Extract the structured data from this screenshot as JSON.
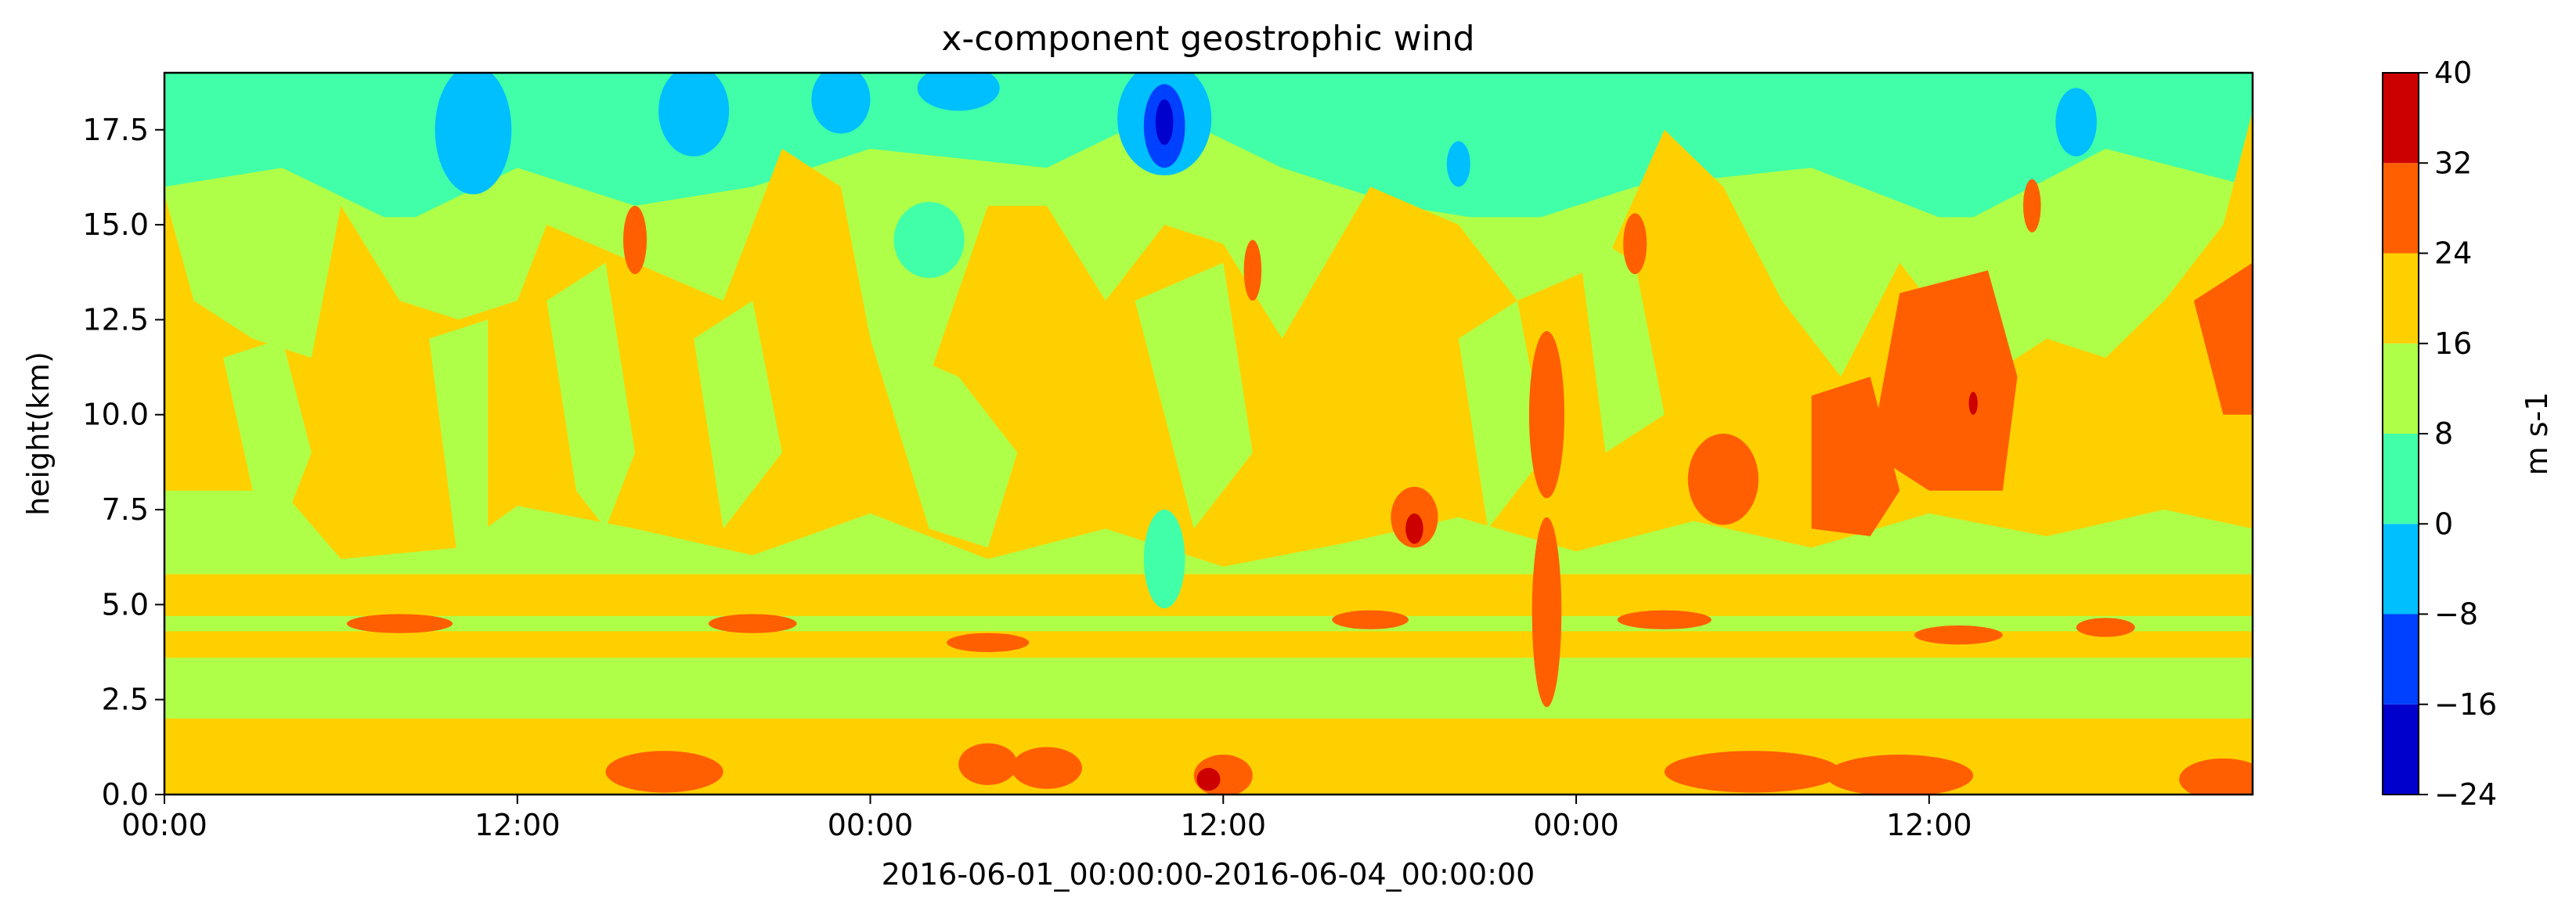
{
  "chart_data": {
    "type": "heatmap",
    "subtype": "filled-contour",
    "title": "x-component geostrophic wind",
    "xlabel": "2016-06-01_00:00:00-2016-06-04_00:00:00",
    "ylabel": "height(km)",
    "colorbar_label": "m s-1",
    "x_range_hours": [
      0,
      71
    ],
    "xlim": [
      "2016-06-01 00:00",
      "2016-06-03 23:00"
    ],
    "ylim": [
      0,
      19.0
    ],
    "x_ticks": [
      {
        "value": "2016-06-01 00:00",
        "label": "00:00"
      },
      {
        "value": "2016-06-01 12:00",
        "label": "12:00"
      },
      {
        "value": "2016-06-02 00:00",
        "label": "00:00"
      },
      {
        "value": "2016-06-02 12:00",
        "label": "12:00"
      },
      {
        "value": "2016-06-03 00:00",
        "label": "00:00"
      },
      {
        "value": "2016-06-03 12:00",
        "label": "12:00"
      }
    ],
    "y_ticks": [
      "0.0",
      "2.5",
      "5.0",
      "7.5",
      "10.0",
      "12.5",
      "15.0",
      "17.5"
    ],
    "levels": [
      -24,
      -16,
      -8,
      0,
      8,
      16,
      24,
      32,
      40
    ],
    "level_labels": [
      "−24",
      "−16",
      "−8",
      "0",
      "8",
      "16",
      "24",
      "32",
      "40"
    ],
    "colors": [
      "#0000cd",
      "#0040ff",
      "#00bfff",
      "#40ffa8",
      "#afff48",
      "#ffd000",
      "#ff5f00",
      "#cd0000"
    ],
    "grid": false,
    "colorbar_position": "right",
    "field_description": "filled contours of u-wind vs time and height; mostly 8–24 m s-1, negative pockets near 17–19 km around 2016-06-02 10:00, orange/red bands (24–40) near surface and 7–13 km on 2016-06-03"
  }
}
